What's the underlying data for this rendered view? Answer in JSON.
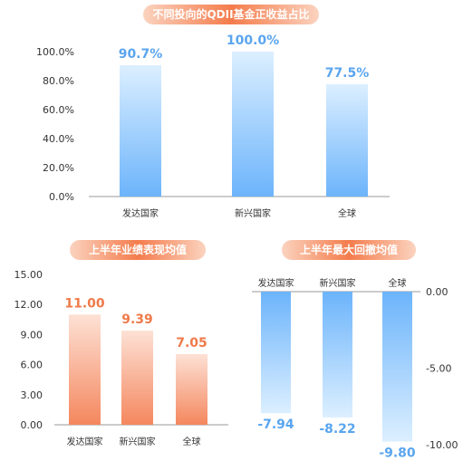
{
  "titles": {
    "top": "不同投向的QDII基金正收益占比",
    "bottom_left": "上半年业绩表现均值",
    "bottom_right": "上半年最大回撤均值"
  },
  "colors": {
    "blue_bar_top": "#dcefff",
    "blue_bar_bottom": "#6cb4fb",
    "blue_label": "#5aa5ef",
    "orange_bar_top": "#fde1d5",
    "orange_bar_bottom": "#f4875e",
    "orange_label": "#ef7a4b",
    "axis_text": "#333333",
    "axis_line": "#999999"
  },
  "chart_data": [
    {
      "type": "bar",
      "categories": [
        "发达国家",
        "新兴国家",
        "全球"
      ],
      "values": [
        90.7,
        100.0,
        77.5
      ],
      "data_labels": [
        "90.7%",
        "100.0%",
        "77.5%"
      ],
      "yticks": [
        "0.0%",
        "20.0%",
        "40.0%",
        "60.0%",
        "80.0%",
        "100.0%"
      ],
      "ylim": [
        0,
        100
      ],
      "title": "不同投向的QDII基金正收益占比",
      "grid": false
    },
    {
      "type": "bar",
      "categories": [
        "发达国家",
        "新兴国家",
        "全球"
      ],
      "values": [
        11.0,
        9.39,
        7.05
      ],
      "data_labels": [
        "11.00",
        "9.39",
        "7.05"
      ],
      "yticks": [
        "0.00",
        "3.00",
        "6.00",
        "9.00",
        "12.00",
        "15.00"
      ],
      "ylim": [
        0,
        15
      ],
      "title": "上半年业绩表现均值",
      "grid": false
    },
    {
      "type": "bar",
      "categories": [
        "发达国家",
        "新兴国家",
        "全球"
      ],
      "values": [
        -7.94,
        -8.22,
        -9.8
      ],
      "data_labels": [
        "-7.94",
        "-8.22",
        "-9.80"
      ],
      "yticks": [
        "0.00",
        "-5.00",
        "-10.00"
      ],
      "ylim": [
        -10,
        0
      ],
      "title": "上半年最大回撤均值",
      "grid": false
    }
  ]
}
